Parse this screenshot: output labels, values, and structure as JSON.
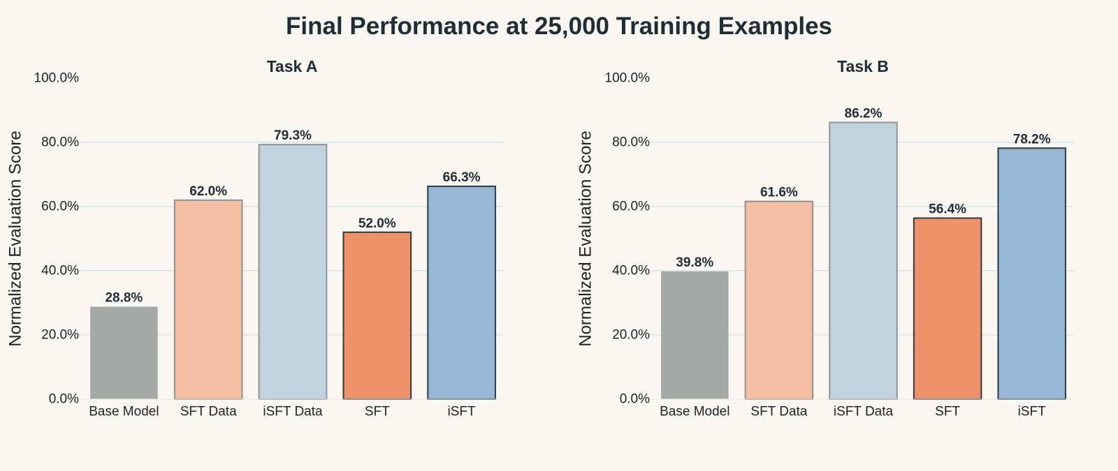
{
  "title": "Final Performance at 25,000 Training Examples",
  "chart_data": [
    {
      "type": "bar",
      "title": "Task A",
      "ylabel": "Normalized Evaluation Score",
      "categories": [
        "Base Model",
        "SFT Data",
        "iSFT Data",
        "SFT",
        "iSFT"
      ],
      "values": [
        28.8,
        62.0,
        79.3,
        52.0,
        66.3
      ],
      "value_labels": [
        "28.8%",
        "62.0%",
        "79.3%",
        "52.0%",
        "66.3%"
      ],
      "colors": [
        "#a2a9a7",
        "#f3bea1",
        "#c0d3df",
        "#ef9168",
        "#96b7d5"
      ],
      "ylim": [
        0,
        100
      ],
      "yticks": [
        0,
        20,
        40,
        60,
        80,
        100
      ],
      "ytick_labels": [
        "0.0%",
        "20.0%",
        "40.0%",
        "60.0%",
        "80.0%",
        "100.0%"
      ],
      "grid": true
    },
    {
      "type": "bar",
      "title": "Task B",
      "ylabel": "Normalized Evaluation Score",
      "categories": [
        "Base Model",
        "SFT Data",
        "iSFT Data",
        "SFT",
        "iSFT"
      ],
      "values": [
        39.8,
        61.6,
        86.2,
        56.4,
        78.2
      ],
      "value_labels": [
        "39.8%",
        "61.6%",
        "86.2%",
        "56.4%",
        "78.2%"
      ],
      "colors": [
        "#a2a9a7",
        "#f3bea1",
        "#c0d3df",
        "#ef9168",
        "#96b7d5"
      ],
      "ylim": [
        0,
        100
      ],
      "yticks": [
        0,
        20,
        40,
        60,
        80,
        100
      ],
      "ytick_labels": [
        "0.0%",
        "20.0%",
        "40.0%",
        "60.0%",
        "80.0%",
        "100.0%"
      ],
      "grid": true
    }
  ]
}
